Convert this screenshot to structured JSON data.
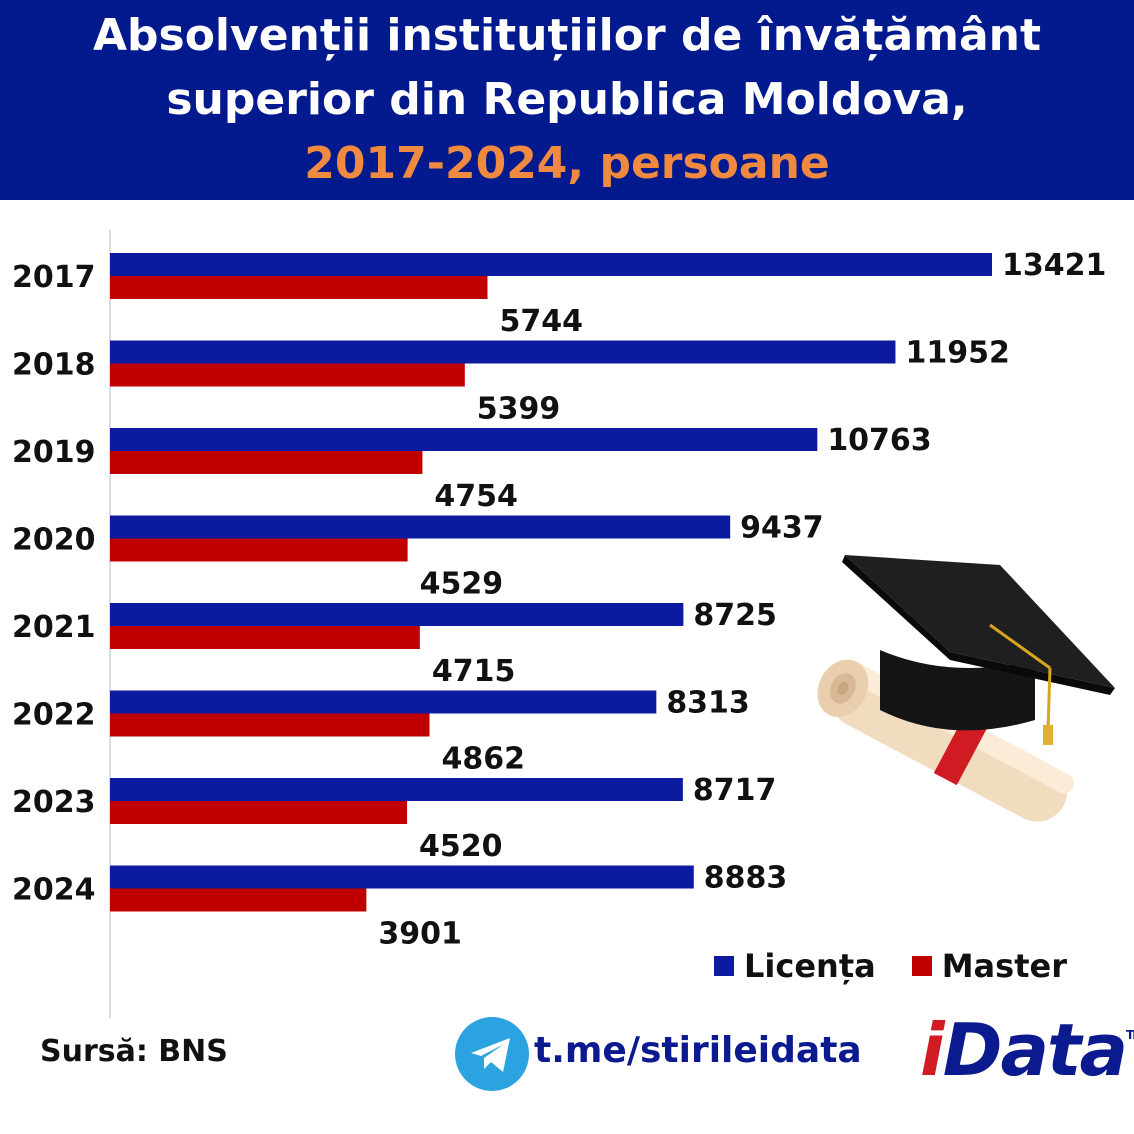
{
  "header": {
    "line1": "Absolvenții instituțiilor de învățământ",
    "line2": "superior din Republica Moldova,",
    "line3": "2017-2024, persoane"
  },
  "colors": {
    "header_bg": "#031a8f",
    "accent": "#f08a40",
    "licenta": "#0b1a9e",
    "master": "#c00000"
  },
  "chart_data": {
    "type": "bar",
    "orientation": "horizontal",
    "categories": [
      "2017",
      "2018",
      "2019",
      "2020",
      "2021",
      "2022",
      "2023",
      "2024"
    ],
    "series": [
      {
        "name": "Licența",
        "values": [
          13421,
          11952,
          10763,
          9437,
          8725,
          8313,
          8717,
          8883
        ]
      },
      {
        "name": "Master",
        "values": [
          5744,
          5399,
          4754,
          4529,
          4715,
          4862,
          4520,
          3901
        ]
      }
    ],
    "xlim": [
      0,
      13421
    ],
    "grid": false,
    "legend": "bottom-right"
  },
  "legend": {
    "licenta": "Licența",
    "master": "Master"
  },
  "footer": {
    "source": "Sursă: BNS",
    "telegram": "t.me/stirileidata",
    "brand_i": "i",
    "brand_rest": "Data",
    "tm": "TM"
  },
  "decor": {
    "image": "graduation-cap-and-diploma"
  }
}
